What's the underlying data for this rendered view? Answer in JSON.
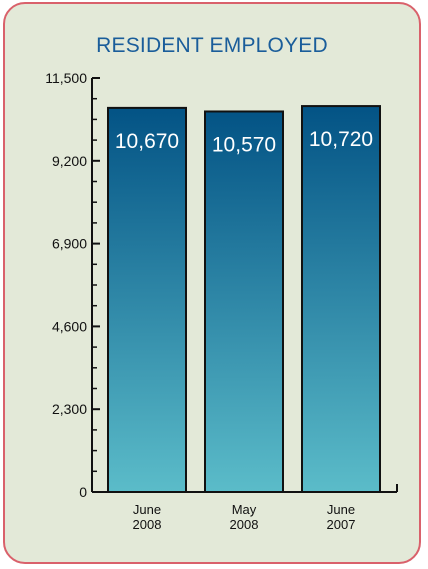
{
  "chart_data": {
    "type": "bar",
    "title": "RESIDENT EMPLOYED",
    "categories": [
      [
        "June",
        "2008"
      ],
      [
        "May",
        "2008"
      ],
      [
        "June",
        "2007"
      ]
    ],
    "values": [
      10670,
      10570,
      10720
    ],
    "value_labels": [
      "10,670",
      "10,570",
      "10,720"
    ],
    "ylim": [
      0,
      11500
    ],
    "yticks": [
      0,
      2300,
      4600,
      6900,
      9200,
      11500
    ],
    "ytick_labels": [
      "0",
      "2,300",
      "4,600",
      "6,900",
      "9,200",
      "11,500"
    ],
    "colors": {
      "bar_top": "#035385",
      "bar_bottom": "#5bbcc9",
      "background": "#e3e9d8",
      "border": "#d9616b",
      "title": "#1a5d9a"
    }
  }
}
